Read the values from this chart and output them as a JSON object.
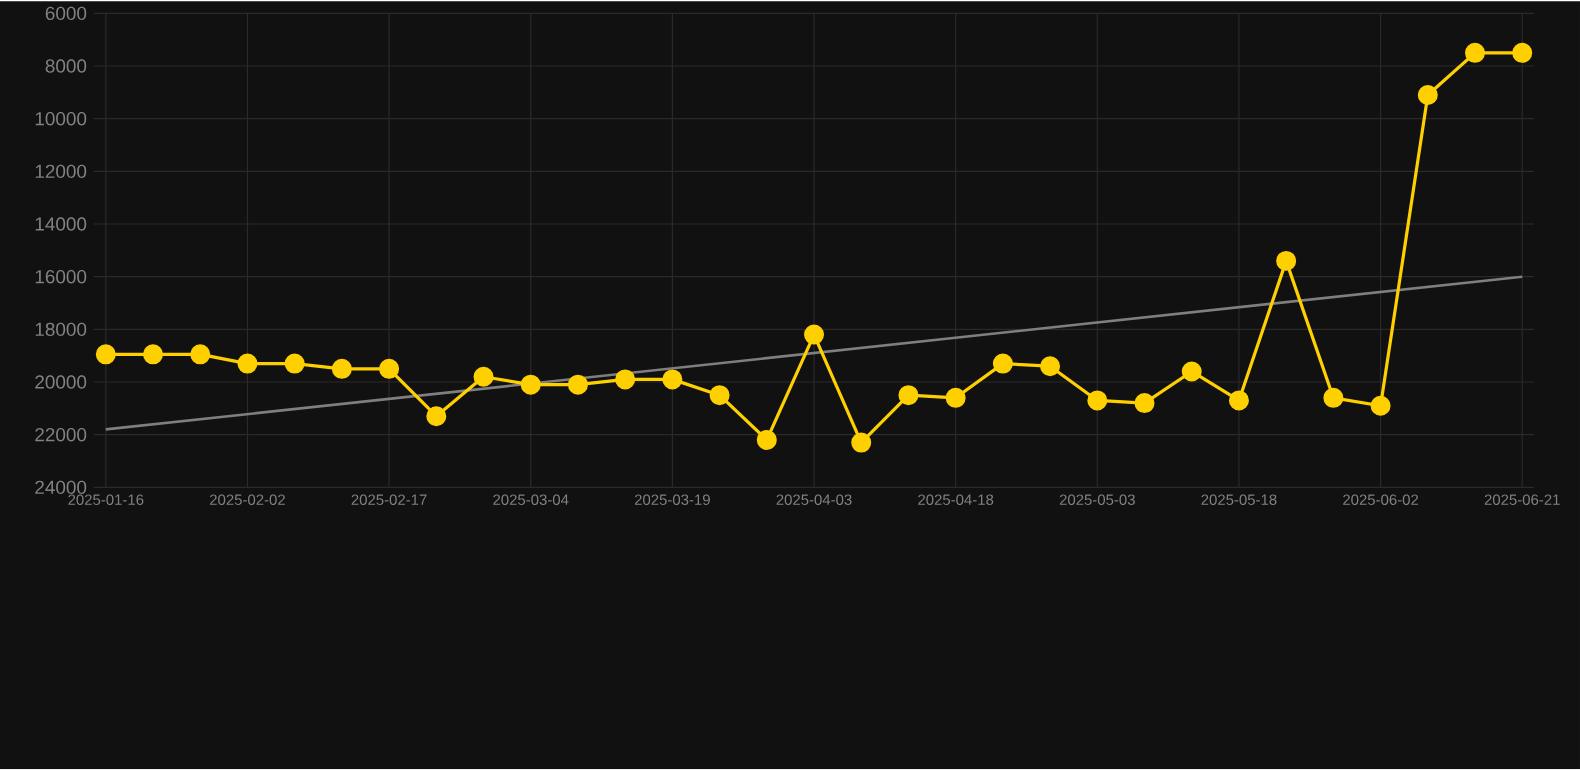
{
  "chart_data": {
    "type": "line",
    "categories": [
      "2025-01-16",
      null,
      null,
      "2025-02-02",
      null,
      null,
      "2025-02-17",
      null,
      null,
      "2025-03-04",
      null,
      null,
      "2025-03-19",
      null,
      null,
      "2025-04-03",
      null,
      null,
      "2025-04-18",
      null,
      null,
      "2025-05-03",
      null,
      null,
      "2025-05-18",
      null,
      null,
      "2025-06-02",
      null,
      null,
      "2025-06-21"
    ],
    "series": [
      {
        "color": "#ffd000",
        "marker": "circle",
        "values": [
          18950,
          18950,
          18950,
          19300,
          19300,
          19500,
          19500,
          21300,
          19800,
          20100,
          20100,
          19900,
          19900,
          20500,
          22200,
          18200,
          22300,
          20500,
          20600,
          19300,
          19400,
          20700,
          20800,
          19600,
          20700,
          15400,
          20600,
          20900,
          9100,
          7500,
          7500
        ]
      },
      {
        "type": "line",
        "color": "#7f7f7f",
        "marker": "none",
        "values": [
          21800,
          null,
          null,
          null,
          null,
          null,
          null,
          null,
          null,
          null,
          null,
          null,
          null,
          null,
          null,
          null,
          null,
          null,
          null,
          null,
          null,
          null,
          null,
          null,
          null,
          null,
          null,
          null,
          null,
          null,
          16000
        ]
      }
    ],
    "ylim": [
      24000,
      6000
    ],
    "yticks": [
      6000,
      8000,
      10000,
      12000,
      14000,
      16000,
      18000,
      20000,
      22000,
      24000
    ],
    "grid": true
  }
}
